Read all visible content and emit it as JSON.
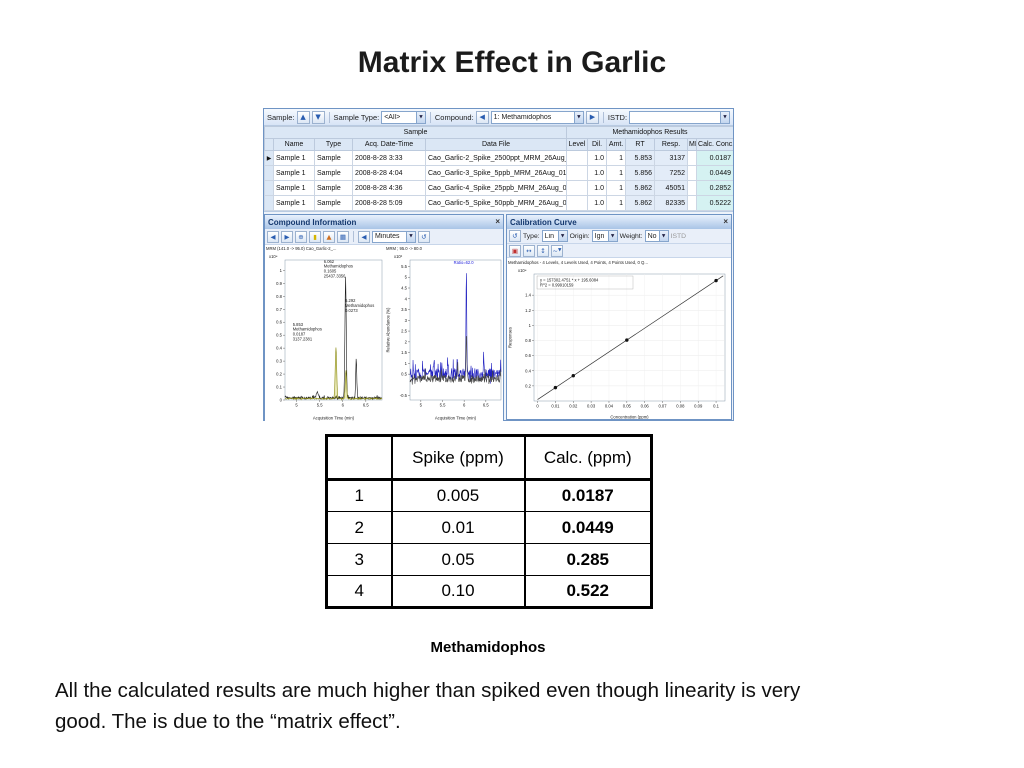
{
  "slide": {
    "title": "Matrix Effect in Garlic",
    "caption": "Methamidophos",
    "body_text": "All the calculated results are much higher than spiked even though linearity is very good. The is due to the “matrix effect”."
  },
  "app": {
    "toolbar": {
      "sample_label": "Sample:",
      "sample_type_label": "Sample Type:",
      "sample_type_value": "<All>",
      "compound_label": "Compound:",
      "compound_value": "1: Methamidophos",
      "istd_label": "ISTD:",
      "istd_value": ""
    },
    "batch_table": {
      "group_sample": "Sample",
      "group_results": "Methamidophos Results",
      "columns": [
        "",
        "Name",
        "Type",
        "Acq. Date-Time",
        "Data File",
        "Level",
        "Dil.",
        "Amt.",
        "RT",
        "Resp.",
        "MI",
        "Calc. Conc."
      ],
      "rows": [
        [
          "▶",
          "Sample 1",
          "Sample",
          "2008-8-28 3:33",
          "Cao_Garlic-2_Spike_2500ppt_MRM_26Aug_01.",
          "",
          "1.0",
          "1",
          "5.853",
          "3137",
          "",
          "0.0187"
        ],
        [
          "",
          "Sample 1",
          "Sample",
          "2008-8-28 4:04",
          "Cao_Garlic-3_Spike_5ppb_MRM_26Aug_01.D",
          "",
          "1.0",
          "1",
          "5.856",
          "7252",
          "",
          "0.0449"
        ],
        [
          "",
          "Sample 1",
          "Sample",
          "2008-8-28 4:36",
          "Cao_Garlic-4_Spike_25ppb_MRM_26Aug_01.D",
          "",
          "1.0",
          "1",
          "5.862",
          "45051",
          "",
          "0.2852"
        ],
        [
          "",
          "Sample 1",
          "Sample",
          "2008-8-28 5:09",
          "Cao_Garlic-5_Spike_50ppb_MRM_26Aug_01.D",
          "",
          "1.0",
          "1",
          "5.862",
          "82335",
          "",
          "0.5222"
        ]
      ]
    },
    "compound_info": {
      "title": "Compound Information",
      "time_units_value": "Minutes"
    },
    "calibration": {
      "title": "Calibration Curve",
      "type_label": "Type:",
      "type_value": "Lin",
      "origin_label": "Origin:",
      "origin_value": "Ign",
      "weight_label": "Weight:",
      "weight_value": "No",
      "istd_label": "ISTD"
    }
  },
  "results_table": {
    "columns": [
      "",
      "Spike (ppm)",
      "Calc. (ppm)"
    ],
    "rows": [
      [
        "1",
        "0.005",
        "0.0187"
      ],
      [
        "2",
        "0.01",
        "0.0449"
      ],
      [
        "3",
        "0.05",
        "0.285"
      ],
      [
        "4",
        "0.10",
        "0.522"
      ]
    ]
  },
  "chart_data": [
    {
      "id": "chrom1",
      "type": "line",
      "title": "MRM (141.0 -> 95.0) Cao_Garlic-2_...",
      "scale_label": "x10⁴",
      "xlabel": "Acquisition Time (min)",
      "xlim": [
        4.75,
        6.85
      ],
      "ylim": [
        0,
        1.08
      ],
      "xticks": [
        5,
        5.5,
        6,
        6.5
      ],
      "yticks": [
        0,
        0.1,
        0.2,
        0.3,
        0.4,
        0.5,
        0.6,
        0.7,
        0.8,
        0.9,
        1
      ],
      "traces": [
        {
          "name": "quantifier",
          "color": "#1a1a1a",
          "base": 0.012,
          "noise": 0.012,
          "seed": 3,
          "peaks": [
            {
              "rt": 6.062,
              "h": 0.93,
              "w": 0.02
            },
            {
              "rt": 6.292,
              "h": 0.3,
              "w": 0.016
            },
            {
              "rt": 5.45,
              "h": 0.05,
              "w": 0.03
            }
          ]
        },
        {
          "name": "target-peak",
          "color": "#8a8a10",
          "fill": "rgba(190,190,40,0.35)",
          "base": 0.008,
          "noise": 0.008,
          "seed": 9,
          "peaks": [
            {
              "rt": 5.853,
              "h": 0.4,
              "w": 0.022
            },
            {
              "rt": 6.07,
              "h": 0.22,
              "w": 0.02
            }
          ]
        }
      ],
      "annotations": [
        {
          "fx": 0.4,
          "fy": 0.02,
          "lines": [
            "6.062",
            "Methamidophos",
            "0.1605",
            "25437.3356"
          ]
        },
        {
          "fx": 0.62,
          "fy": 0.3,
          "lines": [
            "6.292",
            "Methamidophos",
            "0.0273"
          ]
        },
        {
          "fx": 0.08,
          "fy": 0.47,
          "lines": [
            "5.853",
            "Methamidophos",
            "0.0187",
            "3137.2381"
          ]
        }
      ]
    },
    {
      "id": "chrom2",
      "type": "line",
      "title": "MRM ; 95.0 -> 80.0",
      "scale_label": "x10²",
      "ylabel": "Relative Abundance (%)",
      "xlabel": "Acquisition Time (min)",
      "xlim": [
        4.75,
        6.85
      ],
      "ylim": [
        -0.7,
        5.8
      ],
      "xticks": [
        5,
        5.5,
        6,
        6.5
      ],
      "yticks": [
        -0.5,
        0.5,
        1,
        1.5,
        2,
        2.5,
        3,
        3.5,
        4,
        4.5,
        5,
        5.5
      ],
      "traces": [
        {
          "name": "qualifier",
          "color": "#2020c0",
          "base": 0.35,
          "noise": 0.4,
          "seed": 5,
          "peaks": [
            {
              "rt": 6.05,
              "h": 4.9,
              "w": 0.013
            },
            {
              "rt": 5.3,
              "h": 0.7,
              "w": 0.02
            },
            {
              "rt": 5.62,
              "h": 0.55,
              "w": 0.015
            },
            {
              "rt": 6.45,
              "h": 0.6,
              "w": 0.018
            }
          ]
        },
        {
          "name": "overlay",
          "color": "#444444",
          "base": 0.2,
          "noise": 0.25,
          "seed": 11,
          "peaks": [
            {
              "rt": 6.05,
              "h": 2.1,
              "w": 0.015
            },
            {
              "rt": 5.85,
              "h": 0.5,
              "w": 0.02
            }
          ]
        }
      ],
      "annotations": [
        {
          "fx": 0.48,
          "fy": 0.03,
          "color": "#2222dd",
          "lines": [
            "Ratio=62.0"
          ]
        }
      ]
    },
    {
      "id": "calplot",
      "type": "scatter",
      "header": "Methamidophos - 4 Levels, 4 Levels Used, 4 Points, 4 Points Used, 0 Q...",
      "equation": "y = 157302.4751 * x + 195.6084",
      "r_squared": "R^2 = 0.99910159",
      "scale_label": "x10⁴",
      "ylabel": "Responses",
      "xlabel": "Concentration (ppm)",
      "xlim": [
        -0.002,
        0.105
      ],
      "ylim": [
        0,
        1.68
      ],
      "xticks": [
        0,
        0.01,
        0.02,
        0.03,
        0.04,
        0.05,
        0.06,
        0.07,
        0.08,
        0.09,
        0.1
      ],
      "yticks": [
        0.2,
        0.4,
        0.6,
        0.8,
        1,
        1.2,
        1.4
      ],
      "fit": {
        "slope": 157302.4751,
        "intercept": 195.6084,
        "scale": 10000
      },
      "points": [
        {
          "x": 0.01,
          "y": 0.1768
        },
        {
          "x": 0.02,
          "y": 0.3342
        },
        {
          "x": 0.05,
          "y": 0.8061
        },
        {
          "x": 0.1,
          "y": 1.5926
        }
      ]
    }
  ]
}
